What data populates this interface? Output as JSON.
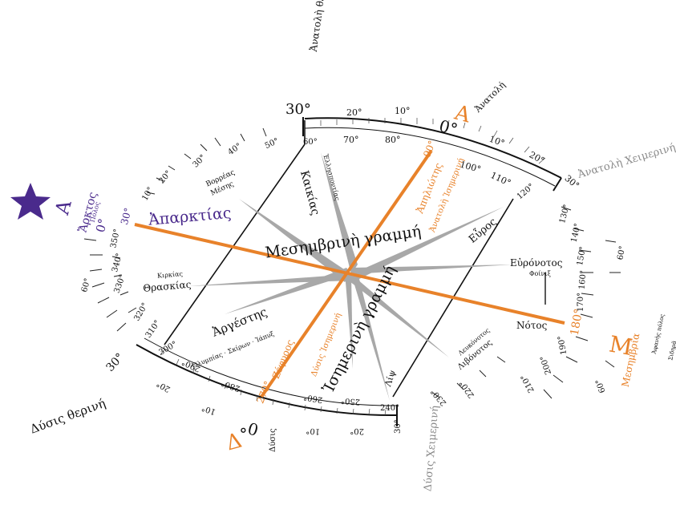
{
  "colors": {
    "orange": "#E8822A",
    "purple": "#4A2A8C",
    "gray": "#A8A8A8",
    "darkgray": "#8A8A8A",
    "black": "#111111"
  },
  "icons": {
    "pole_star": "star-icon"
  },
  "labels": {
    "arktos_letter": "Α",
    "arktos": "Ἄρκτος",
    "arktos_sub": "Πόλος",
    "arktos_deg": "0°",
    "aparktias": "Ἀπαρκτίας",
    "anatoli_letter": "Α",
    "anatoli_deg": "0°",
    "anatoli": "Ἀνατολή",
    "anatoli_therini": "Ἀνατολὴ θερινή",
    "anatoli_cheimerini": "Ἀνατολὴ Χειμερινή",
    "mesimvria_letter": "Μ",
    "mesimvria": "Μεσημβρία",
    "mesimvria_sub1": "Ἀφανὴς πόλος",
    "mesimvria_sub2": "Σιδηρᾶ",
    "mesimvria_deg": "180°",
    "dysis_letter": "Δ",
    "dysis_deg": "0°",
    "dysis": "Δύσις",
    "dysis_therini": "Δύσις θερινή",
    "dysis_cheimerini": "Δύσις Χειμερινή",
    "ring_30_top": "30°",
    "ring_30_left": "30°",
    "ring_30_right": "30°",
    "ring_30_bottom": "30°",
    "meridian_line": "Μεσημβρινὴ γραμμή",
    "isimerini_line": "Ἰσημερινὴ γραμμή",
    "apiliotis": "Ἀπηλιώτης",
    "apiliotis_sub": "Ἀνατολὴ Ἰσημερινή",
    "apiliotis_deg": "90°",
    "zefyros": "Ζέφυρος",
    "zefyros_sub": "Δύσις Ἰσημερινή",
    "zefyros_deg": "270°",
    "kaikias": "Καικίας",
    "ellispontias": "Ἑλλησποντίας",
    "deg_60": "60°",
    "evros": "Εὖρος",
    "deg_120": "120°",
    "evronotos": "Εὐρόνοτος",
    "foinix": "Φοίνιξ",
    "notos": "Νότος",
    "lefkonotos": "Λευκόνοτος",
    "livonotos": "Λιβόνοτος",
    "lips": "Λίψ",
    "deg_240": "240°",
    "argestis": "Ἀργέστης",
    "olympias": "Ὀλυμπίας · Σκίρων · Ἰάπυξ",
    "deg_300": "300°",
    "thraskias": "Θρασκίας",
    "kirkias": "Κιρκίας",
    "voreas": "Βορρέας",
    "mesis": "Μέσης"
  },
  "ring_ticks": {
    "top": [
      "20°",
      "10°",
      "10°",
      "20°"
    ],
    "top_inner": [
      "70°",
      "80°",
      "100°",
      "110°"
    ],
    "right": [
      "130°",
      "140°",
      "150°",
      "160°",
      "170°",
      "190°",
      "200°",
      "210°"
    ],
    "right_outer": [
      "60°",
      "60°",
      "60°"
    ],
    "bottom": [
      "20°",
      "10°",
      "10°",
      "20°"
    ],
    "bottom_inner": [
      "290°",
      "280°",
      "260°",
      "250°"
    ],
    "bottom_mid": [
      "230°",
      "220°"
    ],
    "left": [
      "320°",
      "310°",
      "330°",
      "340°",
      "350°",
      "10°",
      "20°",
      "30°",
      "40°",
      "50°"
    ]
  }
}
